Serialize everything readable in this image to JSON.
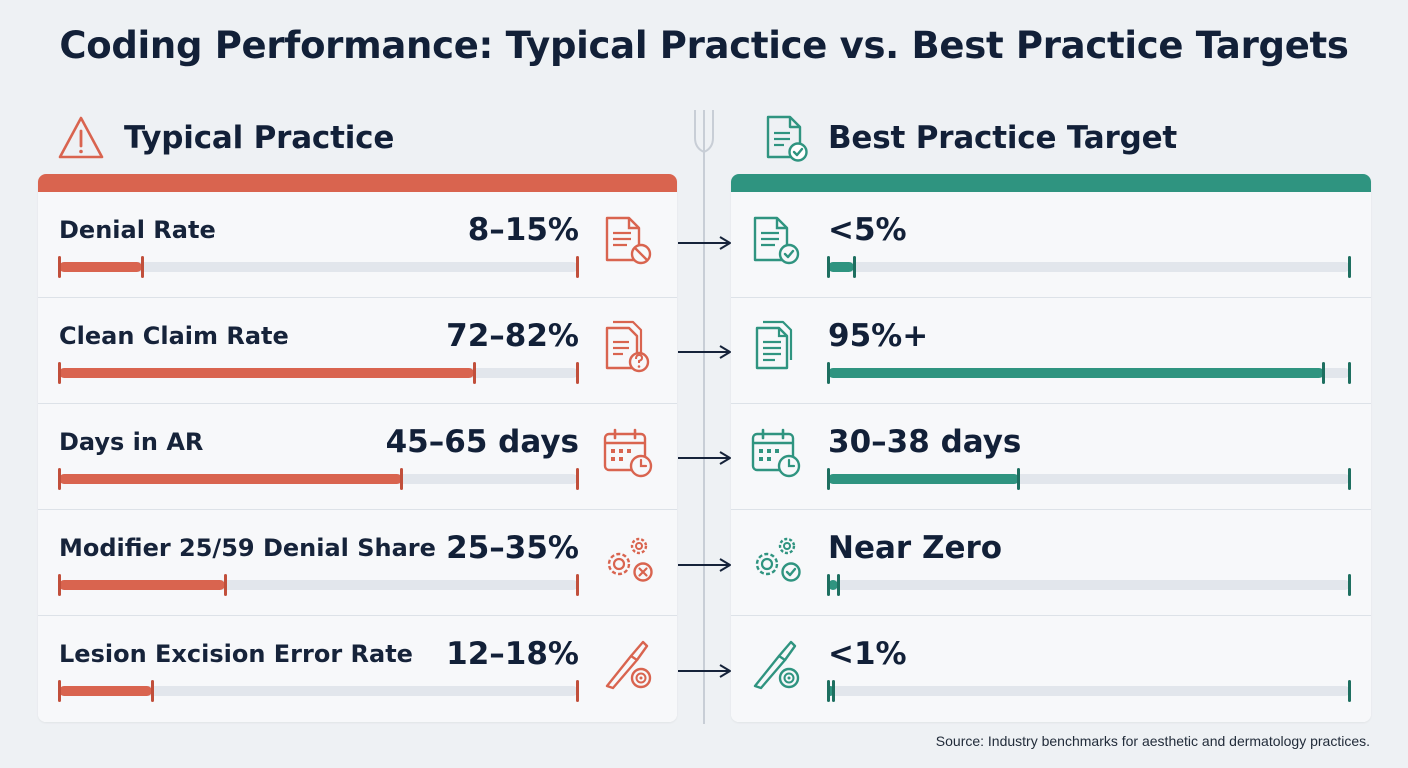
{
  "title": "Coding Performance: Typical Practice vs. Best Practice Targets",
  "left_header": {
    "label": "Typical Practice",
    "icon": "warning-triangle-icon"
  },
  "right_header": {
    "label": "Best Practice Target",
    "icon": "document-check-icon"
  },
  "colors": {
    "typical": "#d9644f",
    "best": "#2f9480",
    "track": "#e2e6ec",
    "text": "#122038"
  },
  "metrics": [
    {
      "label": "Denial Rate",
      "typical_value": "8–15%",
      "typical_icon": "document-prohibited-icon",
      "typical_level": 0.16,
      "target_value": "<5%",
      "target_icon": "document-check-icon",
      "target_level": 0.05
    },
    {
      "label": "Clean Claim Rate",
      "typical_value": "72–82%",
      "typical_icon": "document-question-icon",
      "typical_level": 0.8,
      "target_value": "95%+",
      "target_icon": "documents-stack-icon",
      "target_level": 0.95
    },
    {
      "label": "Days in AR",
      "typical_value": "45–65 days",
      "typical_icon": "calendar-clock-icon",
      "typical_level": 0.66,
      "target_value": "30–38 days",
      "target_icon": "calendar-clock-icon",
      "target_level": 0.365
    },
    {
      "label": "Modifier 25/59 Denial Share",
      "typical_value": "25–35%",
      "typical_icon": "gears-x-icon",
      "typical_level": 0.32,
      "target_value": "Near Zero",
      "target_icon": "gears-check-icon",
      "target_level": 0.02
    },
    {
      "label": "Lesion Excision Error Rate",
      "typical_value": "12–18%",
      "typical_icon": "scalpel-target-icon",
      "typical_level": 0.18,
      "target_value": "<1%",
      "target_icon": "scalpel-target-icon",
      "target_level": 0.01
    }
  ],
  "source": "Source: Industry benchmarks for aesthetic and dermatology practices."
}
